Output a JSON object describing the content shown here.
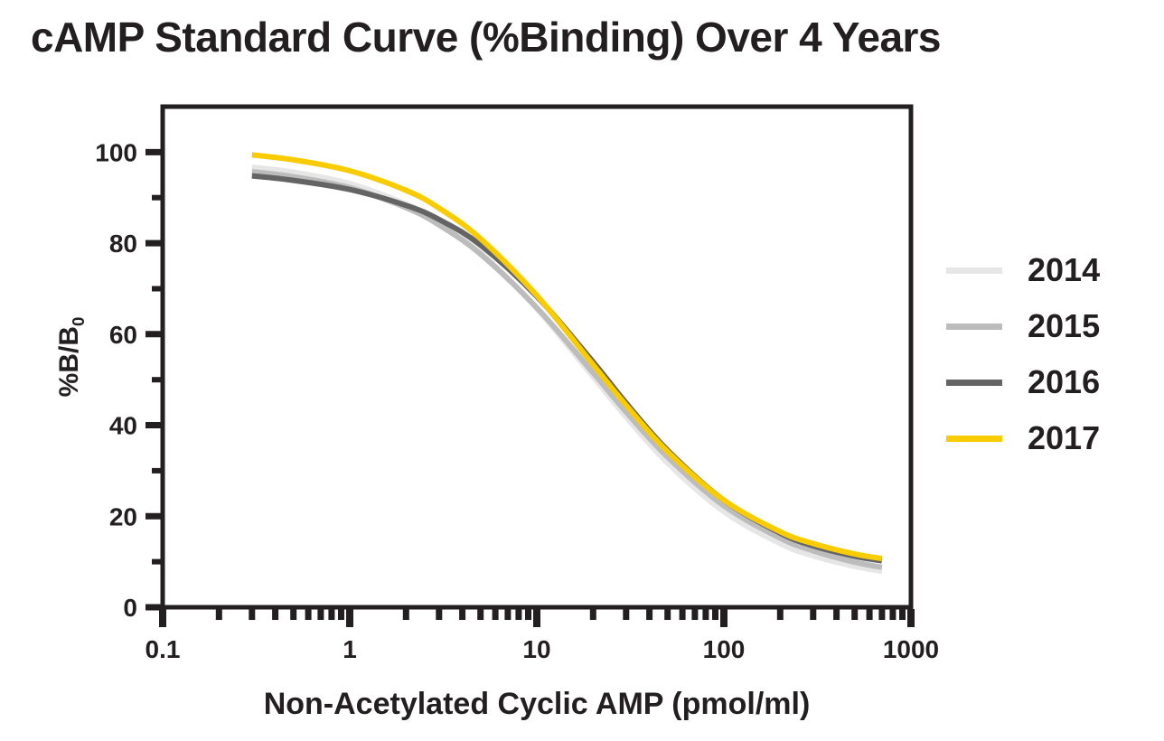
{
  "title": "cAMP Standard Curve (%Binding) Over 4 Years",
  "colors": {
    "text": "#231F20",
    "axis": "#231F20",
    "background": "#FFFFFF"
  },
  "chart_data": {
    "type": "line",
    "title": "cAMP Standard Curve (%Binding) Over 4 Years",
    "xlabel": "Non-Acetylated Cyclic AMP (pmol/ml)",
    "ylabel": "%B/B0",
    "ylabel_base": "%B/B",
    "ylabel_sub": "0",
    "x_scale": "log",
    "xlim": [
      0.1,
      1000
    ],
    "ylim": [
      0,
      110
    ],
    "grid": false,
    "legend_position": "right",
    "x_axis": {
      "major_ticks": [
        {
          "value": 0.1,
          "label": "0.1"
        },
        {
          "value": 1,
          "label": "1"
        },
        {
          "value": 10,
          "label": "10"
        },
        {
          "value": 100,
          "label": "100"
        },
        {
          "value": 1000,
          "label": "1000"
        }
      ],
      "minor_multiples": [
        2,
        3,
        4,
        5,
        6,
        7,
        8,
        9
      ]
    },
    "y_axis": {
      "major_ticks": [
        {
          "value": 0,
          "label": "0"
        },
        {
          "value": 20,
          "label": "20"
        },
        {
          "value": 40,
          "label": "40"
        },
        {
          "value": 60,
          "label": "60"
        },
        {
          "value": 80,
          "label": "80"
        },
        {
          "value": 100,
          "label": "100"
        }
      ],
      "minor_tick_values": [
        10,
        30,
        50,
        70,
        90
      ]
    },
    "x": [
      0.3,
      0.5,
      1,
      2,
      3,
      5,
      10,
      20,
      30,
      50,
      100,
      200,
      300,
      500,
      700
    ],
    "series": [
      {
        "name": "2014",
        "color": "#E6E6E6",
        "values": [
          96.7,
          95.6,
          93.1,
          88.6,
          84.7,
          78.0,
          65.6,
          50.6,
          41.8,
          31.7,
          21.0,
          14.0,
          11.3,
          9.0,
          7.9
        ]
      },
      {
        "name": "2015",
        "color": "#BCBCBC",
        "values": [
          95.7,
          94.6,
          92.2,
          87.8,
          84.0,
          77.6,
          65.8,
          51.5,
          42.9,
          33.0,
          22.3,
          15.2,
          12.4,
          9.9,
          8.8
        ]
      },
      {
        "name": "2016",
        "color": "#646464",
        "values": [
          94.8,
          93.8,
          91.8,
          88.3,
          85.2,
          79.6,
          68.3,
          53.9,
          44.9,
          34.5,
          23.5,
          16.3,
          13.5,
          11.2,
          10.2
        ]
      },
      {
        "name": "2017",
        "color": "#F8CC00",
        "values": [
          99.4,
          98.3,
          95.9,
          91.6,
          87.7,
          81.0,
          68.5,
          53.3,
          44.4,
          34.2,
          23.5,
          16.6,
          14.0,
          11.7,
          10.7
        ]
      }
    ]
  },
  "legend": {
    "items": [
      {
        "label": "2014",
        "color": "#E6E6E6"
      },
      {
        "label": "2015",
        "color": "#BCBCBC"
      },
      {
        "label": "2016",
        "color": "#646464"
      },
      {
        "label": "2017",
        "color": "#F8CC00"
      }
    ]
  }
}
